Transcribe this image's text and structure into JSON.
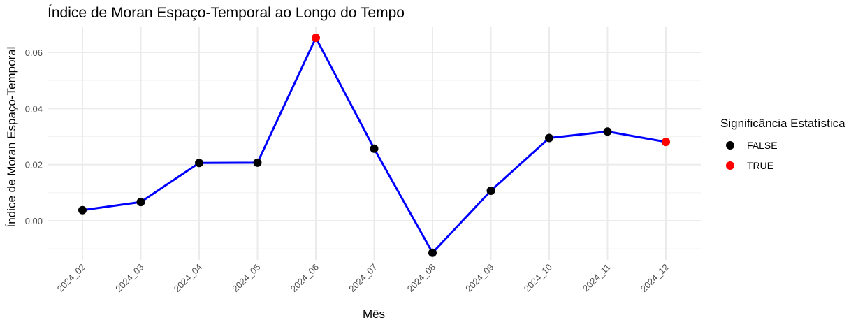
{
  "chart_data": {
    "type": "line",
    "title": "Índice de Moran Espaço-Temporal ao Longo do Tempo",
    "xlabel": "Mês",
    "ylabel": "Índice de Moran Espaço-Temporal",
    "categories": [
      "2024_02",
      "2024_03",
      "2024_04",
      "2024_05",
      "2024_06",
      "2024_07",
      "2024_08",
      "2024_09",
      "2024_10",
      "2024_11",
      "2024_12"
    ],
    "series": [
      {
        "values": [
          0.0038,
          0.0067,
          0.0206,
          0.0207,
          0.0652,
          0.0257,
          -0.0114,
          0.0107,
          0.0295,
          0.0318,
          0.0281
        ],
        "significant": [
          "FALSE",
          "FALSE",
          "FALSE",
          "FALSE",
          "TRUE",
          "FALSE",
          "FALSE",
          "FALSE",
          "FALSE",
          "FALSE",
          "TRUE"
        ]
      }
    ],
    "yticks": [
      0.0,
      0.02,
      0.04,
      0.06
    ],
    "ytick_labels": [
      "0.00",
      "0.02",
      "0.04",
      "0.06"
    ],
    "ylim": [
      -0.01,
      0.07
    ],
    "grid": true,
    "line_color": "#0000ff",
    "legend": {
      "title": "Significância Estatística",
      "position": "right",
      "entries": [
        {
          "label": "FALSE",
          "color": "#000000"
        },
        {
          "label": "TRUE",
          "color": "#ff0000"
        }
      ]
    }
  }
}
